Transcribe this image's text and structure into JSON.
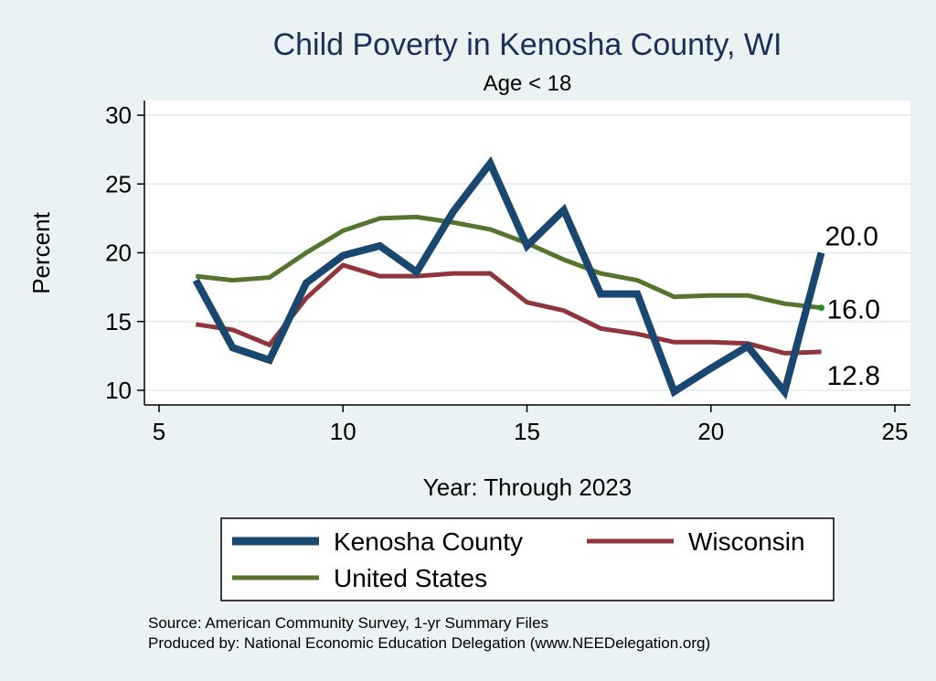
{
  "chart_data": {
    "type": "line",
    "title": "Child Poverty in Kenosha County, WI",
    "subtitle": "Age < 18",
    "xlabel": "Year: Through 2023",
    "ylabel": "Percent",
    "xlim": [
      5,
      25
    ],
    "ylim": [
      10,
      30
    ],
    "xticks": [
      5,
      10,
      15,
      20,
      25
    ],
    "yticks": [
      10,
      15,
      20,
      25,
      30
    ],
    "grid": true,
    "series": [
      {
        "name": "Kenosha County",
        "color": "#1a476f",
        "x": [
          6,
          7,
          8,
          9,
          10,
          11,
          12,
          13,
          14,
          15,
          16,
          17,
          18,
          19,
          20,
          21,
          22,
          23
        ],
        "y": [
          18.0,
          13.1,
          12.2,
          17.8,
          19.8,
          20.5,
          18.6,
          23.0,
          26.5,
          20.5,
          23.1,
          17.0,
          17.0,
          9.9,
          11.6,
          13.2,
          9.9,
          20.0
        ],
        "end_label": "20.0"
      },
      {
        "name": "Wisconsin",
        "color": "#90353b",
        "x": [
          6,
          7,
          8,
          9,
          10,
          11,
          12,
          13,
          14,
          15,
          16,
          17,
          18,
          19,
          20,
          21,
          22,
          23
        ],
        "y": [
          14.8,
          14.4,
          13.3,
          16.7,
          19.1,
          18.3,
          18.3,
          18.5,
          18.5,
          16.4,
          15.8,
          14.5,
          14.1,
          13.5,
          13.5,
          13.4,
          12.7,
          12.8
        ],
        "end_label": "12.8"
      },
      {
        "name": "United States",
        "color": "#55752f",
        "x": [
          6,
          7,
          8,
          9,
          10,
          11,
          12,
          13,
          14,
          15,
          16,
          17,
          18,
          19,
          20,
          21,
          22,
          23
        ],
        "y": [
          18.3,
          18.0,
          18.2,
          20.0,
          21.6,
          22.5,
          22.6,
          22.2,
          21.7,
          20.7,
          19.5,
          18.5,
          18.0,
          16.8,
          16.9,
          16.9,
          16.3,
          16.0
        ],
        "end_label": "16.0"
      }
    ],
    "legend": {
      "placement": "bottom",
      "entries": [
        "Kenosha County",
        "Wisconsin",
        "United States"
      ]
    }
  },
  "notes": {
    "source": "Source: American Community Survey, 1-yr Summary Files",
    "produced_by": "Produced by: National Economic Education Delegation (www.NEEDelegation.org)"
  },
  "colors": {
    "background": "#eaf2f3",
    "plot_background": "#ffffff",
    "grid": "#e6eef0",
    "title": "#1a2f5a"
  }
}
